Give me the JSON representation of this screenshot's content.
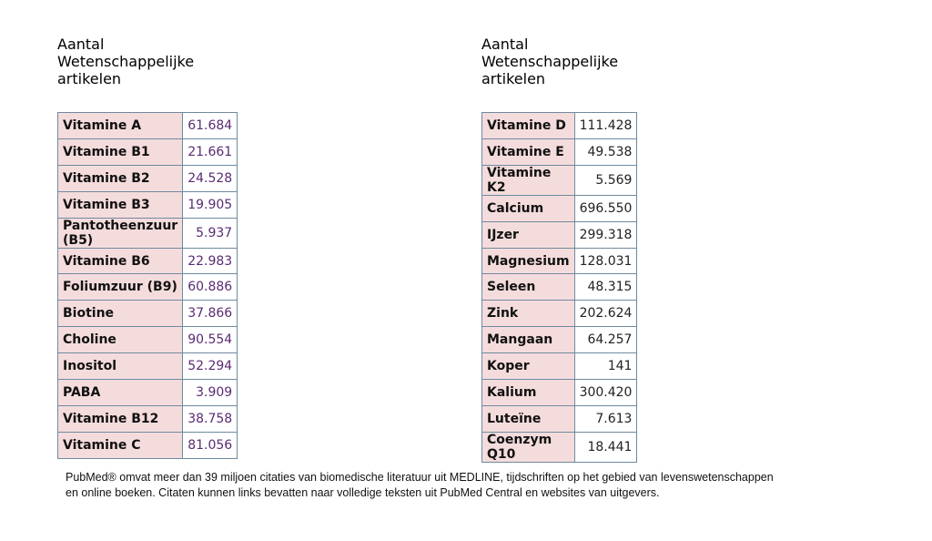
{
  "tables": [
    {
      "header": [
        "Aantal",
        "Wetenschappelijke",
        "artikelen"
      ],
      "rows": [
        [
          "Vitamine A",
          "61.684"
        ],
        [
          "Vitamine B1",
          "21.661"
        ],
        [
          "Vitamine B2",
          "24.528"
        ],
        [
          "Vitamine B3",
          "19.905"
        ],
        [
          "Pantotheenzuur (B5)",
          "5.937"
        ],
        [
          "Vitamine B6",
          "22.983"
        ],
        [
          "Foliumzuur (B9)",
          "60.886"
        ],
        [
          "Biotine",
          "37.866"
        ],
        [
          "Choline",
          "90.554"
        ],
        [
          "Inositol",
          "52.294"
        ],
        [
          "PABA",
          "3.909"
        ],
        [
          "Vitamine B12",
          "38.758"
        ],
        [
          "Vitamine C",
          "81.056"
        ]
      ]
    },
    {
      "header": [
        "Aantal",
        "Wetenschappelijke",
        "artikelen"
      ],
      "rows": [
        [
          "Vitamine D",
          "111.428"
        ],
        [
          "Vitamine E",
          "49.538"
        ],
        [
          "Vitamine K2",
          "5.569"
        ],
        [
          "Calcium",
          "696.550"
        ],
        [
          "IJzer",
          "299.318"
        ],
        [
          "Magnesium",
          "128.031"
        ],
        [
          "Seleen",
          "48.315"
        ],
        [
          "Zink",
          "202.624"
        ],
        [
          "Mangaan",
          "64.257"
        ],
        [
          "Koper",
          "141"
        ],
        [
          "Kalium",
          "300.420"
        ],
        [
          "Luteïne",
          "7.613"
        ],
        [
          "Coenzym Q10",
          "18.441"
        ]
      ]
    }
  ],
  "footnote": [
    "PubMed® omvat meer dan 39 miljoen citaties van biomedische literatuur uit MEDLINE, tijdschriften op het gebied van levenswetenschappen",
    "en online boeken. Citaten kunnen links bevatten naar volledige teksten uit PubMed Central en websites van uitgevers."
  ]
}
